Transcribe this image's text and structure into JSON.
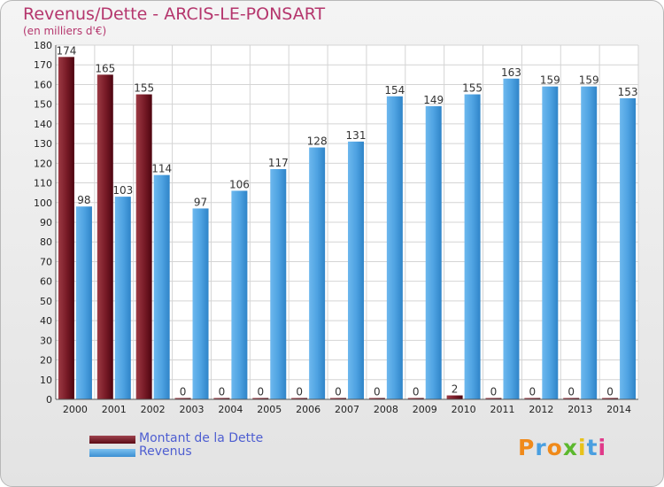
{
  "chart_data": {
    "type": "bar",
    "title": "Revenus/Dette - ARCIS-LE-PONSART",
    "subtitle": "(en milliers d'€)",
    "categories": [
      "2000",
      "2001",
      "2002",
      "2003",
      "2004",
      "2005",
      "2006",
      "2007",
      "2008",
      "2009",
      "2010",
      "2011",
      "2012",
      "2013",
      "2014"
    ],
    "series": [
      {
        "name": "Montant de la Dette",
        "color": "#7a0e1c",
        "values": [
          174,
          165,
          155,
          0,
          0,
          0,
          0,
          0,
          0,
          0,
          2,
          0,
          0,
          0,
          0
        ]
      },
      {
        "name": "Revenus",
        "color": "#4fa3e2",
        "values": [
          98,
          103,
          114,
          97,
          106,
          117,
          128,
          131,
          154,
          149,
          155,
          163,
          159,
          159,
          153
        ]
      }
    ],
    "ylim": [
      0,
      180
    ],
    "ytick_step": 10,
    "grid": true,
    "legend": "bottom-left"
  },
  "logo": {
    "text": "Proxiti"
  }
}
